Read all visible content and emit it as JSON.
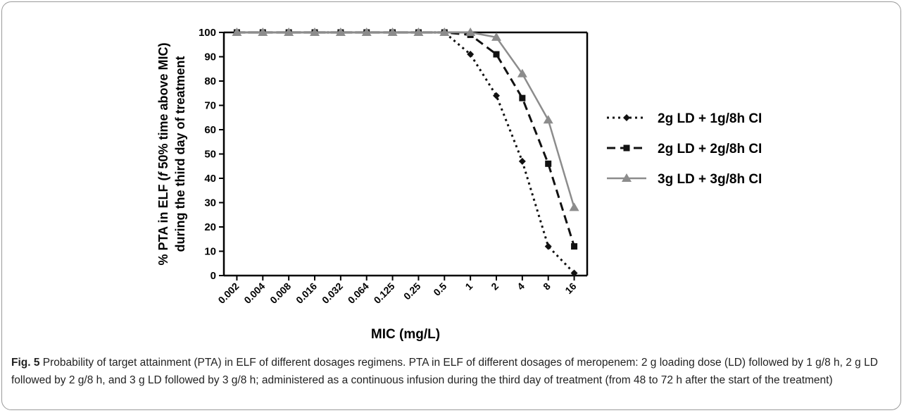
{
  "chart_data": {
    "type": "line",
    "categories": [
      "0.002",
      "0.004",
      "0.008",
      "0.016",
      "0.032",
      "0.064",
      "0.125",
      "0.25",
      "0.5",
      "1",
      "2",
      "4",
      "8",
      "16"
    ],
    "series": [
      {
        "name": "2g LD + 1g/8h CI",
        "color": "#111111",
        "dash": "dotted",
        "marker": "diamond",
        "values": [
          100,
          100,
          100,
          100,
          100,
          100,
          100,
          100,
          100,
          91,
          74,
          47,
          12,
          1
        ]
      },
      {
        "name": "2g LD + 2g/8h CI",
        "color": "#111111",
        "dash": "dashed",
        "marker": "square",
        "values": [
          100,
          100,
          100,
          100,
          100,
          100,
          100,
          100,
          100,
          99,
          91,
          73,
          46,
          12
        ]
      },
      {
        "name": "3g LD + 3g/8h CI",
        "color": "#8c8c8c",
        "dash": "solid",
        "marker": "triangle",
        "values": [
          100,
          100,
          100,
          100,
          100,
          100,
          100,
          100,
          100,
          100,
          98,
          83,
          64,
          28
        ]
      }
    ],
    "ylim": [
      0,
      100
    ],
    "yticks": [
      0,
      10,
      20,
      30,
      40,
      50,
      60,
      70,
      80,
      90,
      100
    ],
    "xlabel": "MIC (mg/L)",
    "ylabel_line1_prefix": "% PTA in ELF (",
    "ylabel_line1_italic": "f",
    "ylabel_line1_suffix": " 50% time above MIC)",
    "ylabel_line2": "during the third day of treatment",
    "grid": false,
    "legend_position": "right"
  },
  "caption": {
    "label": "Fig. 5",
    "text": " Probability of target attainment (PTA) in ELF of different dosages regimens. PTA in ELF of different dosages of meropenem: 2 g loading dose (LD) followed by 1 g/8 h, 2 g LD followed by 2 g/8 h, and 3 g LD followed by 3 g/8 h; administered as a continuous infusion during the third day of treatment (from 48 to 72 h after the start of the treatment)"
  }
}
